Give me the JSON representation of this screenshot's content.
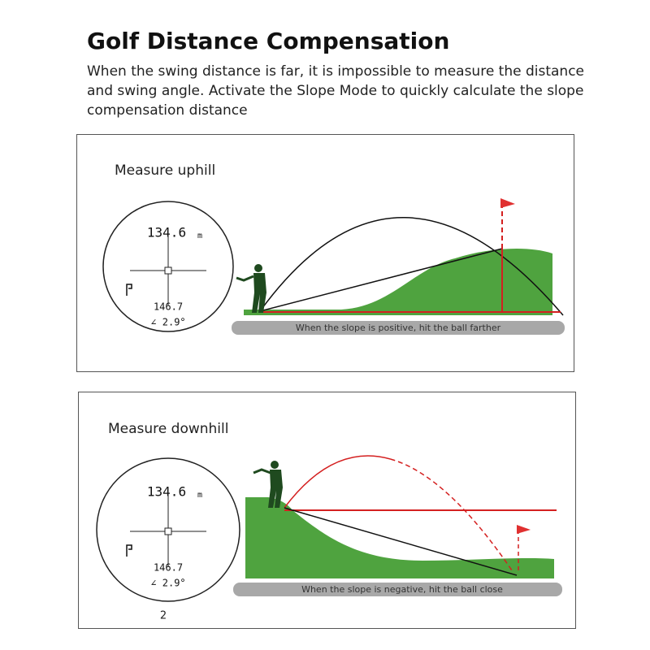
{
  "header": {
    "title": "Golf Distance Compensation",
    "description": [
      "When the swing distance is far, it is impossible to measure the distance",
      "and swing angle. Activate the Slope Mode to quickly calculate the slope",
      "compensation distance"
    ]
  },
  "panels": [
    {
      "title": "Measure uphill",
      "distance": "134.6",
      "unit": "m",
      "horizontal": "146.7",
      "angle": "∠ 2.9°",
      "caption": "When the slope is positive, hit the ball farther"
    },
    {
      "title": "Measure downhill",
      "distance": "134.6",
      "unit": "m",
      "horizontal": "146.7",
      "angle": "∠ 2.9°",
      "caption": "When the slope is negative, hit the ball close",
      "footnote": "2"
    }
  ]
}
